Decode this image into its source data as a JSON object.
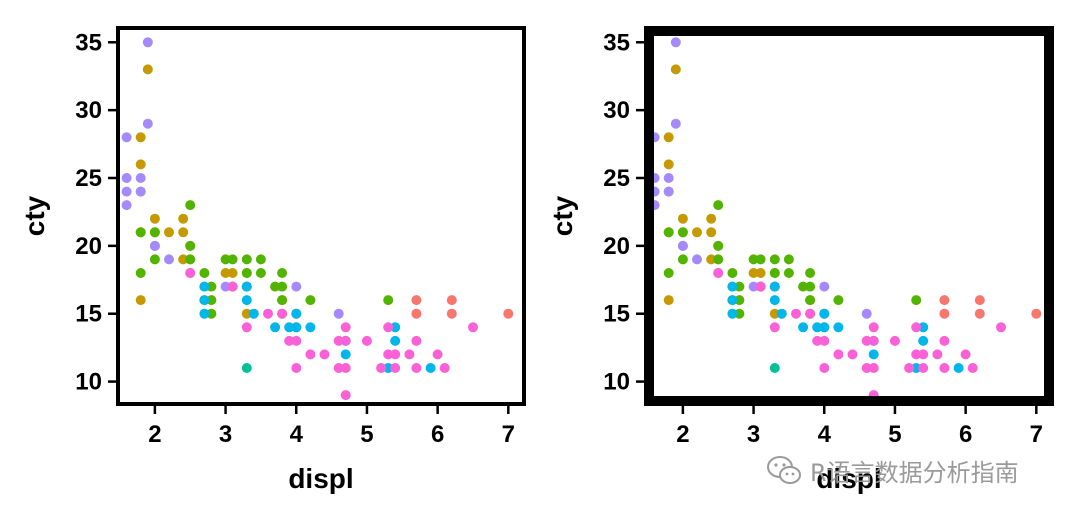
{
  "watermark": {
    "text": "R语言数据分析指南",
    "icon": "wechat-icon"
  },
  "chart_data": [
    {
      "type": "scatter",
      "title": "",
      "xlabel": "displ",
      "ylabel": "cty",
      "xlim": [
        1.45,
        7.25
      ],
      "ylim": [
        8.2,
        36.2
      ],
      "xticks": [
        2,
        3,
        4,
        5,
        6,
        7
      ],
      "yticks": [
        10,
        15,
        20,
        25,
        30,
        35
      ],
      "grid": false,
      "panel_border": "thin",
      "legend": "none",
      "series": [
        {
          "color": "#C49A00",
          "points": [
            [
              1.8,
              16
            ],
            [
              1.8,
              21
            ],
            [
              1.9,
              33
            ],
            [
              1.8,
              28
            ],
            [
              1.8,
              26
            ],
            [
              1.8,
              24
            ],
            [
              2.0,
              22
            ],
            [
              2.0,
              21
            ],
            [
              2.2,
              21
            ],
            [
              2.4,
              22
            ],
            [
              2.4,
              21
            ],
            [
              2.5,
              20
            ],
            [
              2.5,
              19
            ],
            [
              2.4,
              19
            ],
            [
              2.7,
              17
            ],
            [
              2.7,
              16
            ],
            [
              3.0,
              18
            ],
            [
              3.1,
              18
            ],
            [
              3.1,
              17
            ],
            [
              3.3,
              17
            ],
            [
              3.3,
              18
            ],
            [
              3.3,
              15
            ],
            [
              3.8,
              16
            ],
            [
              3.8,
              15
            ]
          ]
        },
        {
          "color": "#53B400",
          "points": [
            [
              1.8,
              18
            ],
            [
              1.8,
              21
            ],
            [
              2.0,
              21
            ],
            [
              2.0,
              20
            ],
            [
              2.0,
              19
            ],
            [
              2.5,
              23
            ],
            [
              2.5,
              20
            ],
            [
              2.5,
              19
            ],
            [
              2.7,
              18
            ],
            [
              2.8,
              17
            ],
            [
              2.8,
              16
            ],
            [
              2.8,
              15
            ],
            [
              3.0,
              19
            ],
            [
              3.1,
              19
            ],
            [
              3.1,
              17
            ],
            [
              3.3,
              19
            ],
            [
              3.3,
              18
            ],
            [
              3.3,
              17
            ],
            [
              3.5,
              19
            ],
            [
              3.5,
              18
            ],
            [
              3.7,
              17
            ],
            [
              3.8,
              18
            ],
            [
              3.8,
              17
            ],
            [
              3.8,
              16
            ],
            [
              4.0,
              15
            ],
            [
              4.0,
              14
            ],
            [
              4.2,
              16
            ],
            [
              5.3,
              16
            ]
          ]
        },
        {
          "color": "#00C094",
          "points": [
            [
              3.3,
              11
            ]
          ]
        },
        {
          "color": "#00B6EB",
          "points": [
            [
              2.7,
              17
            ],
            [
              2.7,
              16
            ],
            [
              2.7,
              15
            ],
            [
              3.3,
              17
            ],
            [
              3.3,
              16
            ],
            [
              3.4,
              15
            ],
            [
              3.7,
              14
            ],
            [
              3.9,
              14
            ],
            [
              4.0,
              15
            ],
            [
              4.0,
              14
            ],
            [
              4.2,
              14
            ],
            [
              4.7,
              13
            ],
            [
              4.7,
              12
            ],
            [
              5.3,
              11
            ],
            [
              5.4,
              13
            ],
            [
              5.4,
              14
            ],
            [
              5.9,
              11
            ]
          ]
        },
        {
          "color": "#A58AFF",
          "points": [
            [
              1.6,
              28
            ],
            [
              1.6,
              25
            ],
            [
              1.6,
              24
            ],
            [
              1.6,
              23
            ],
            [
              1.8,
              25
            ],
            [
              1.8,
              24
            ],
            [
              1.9,
              35
            ],
            [
              1.9,
              29
            ],
            [
              2.0,
              20
            ],
            [
              2.2,
              19
            ],
            [
              2.5,
              18
            ],
            [
              3.0,
              17
            ],
            [
              4.0,
              17
            ],
            [
              4.6,
              15
            ]
          ]
        },
        {
          "color": "#FB61D7",
          "points": [
            [
              2.5,
              18
            ],
            [
              3.1,
              17
            ],
            [
              3.3,
              14
            ],
            [
              3.6,
              15
            ],
            [
              3.8,
              15
            ],
            [
              3.9,
              13
            ],
            [
              4.0,
              13
            ],
            [
              4.0,
              11
            ],
            [
              4.2,
              12
            ],
            [
              4.4,
              12
            ],
            [
              4.6,
              13
            ],
            [
              4.6,
              11
            ],
            [
              4.7,
              14
            ],
            [
              4.7,
              13
            ],
            [
              4.7,
              11
            ],
            [
              4.7,
              9
            ],
            [
              5.0,
              13
            ],
            [
              5.2,
              11
            ],
            [
              5.3,
              12
            ],
            [
              5.3,
              14
            ],
            [
              5.4,
              11
            ],
            [
              5.4,
              12
            ],
            [
              5.6,
              12
            ],
            [
              5.7,
              13
            ],
            [
              5.7,
              11
            ],
            [
              6.0,
              12
            ],
            [
              6.1,
              11
            ],
            [
              6.5,
              14
            ]
          ]
        },
        {
          "color": "#F8766D",
          "points": [
            [
              5.7,
              16
            ],
            [
              5.7,
              15
            ],
            [
              6.2,
              16
            ],
            [
              6.2,
              15
            ],
            [
              7.0,
              15
            ]
          ]
        }
      ]
    },
    {
      "type": "scatter",
      "title": "",
      "xlabel": "displ",
      "ylabel": "cty",
      "xlim": [
        1.45,
        7.25
      ],
      "ylim": [
        8.2,
        36.2
      ],
      "xticks": [
        2,
        3,
        4,
        5,
        6,
        7
      ],
      "yticks": [
        10,
        15,
        20,
        25,
        30,
        35
      ],
      "grid": false,
      "panel_border": "thick",
      "legend": "none",
      "series": [
        {
          "color": "#C49A00",
          "points": [
            [
              1.8,
              16
            ],
            [
              1.8,
              21
            ],
            [
              1.9,
              33
            ],
            [
              1.8,
              28
            ],
            [
              1.8,
              26
            ],
            [
              1.8,
              24
            ],
            [
              2.0,
              22
            ],
            [
              2.0,
              21
            ],
            [
              2.2,
              21
            ],
            [
              2.4,
              22
            ],
            [
              2.4,
              21
            ],
            [
              2.5,
              20
            ],
            [
              2.5,
              19
            ],
            [
              2.4,
              19
            ],
            [
              2.7,
              17
            ],
            [
              2.7,
              16
            ],
            [
              3.0,
              18
            ],
            [
              3.1,
              18
            ],
            [
              3.1,
              17
            ],
            [
              3.3,
              17
            ],
            [
              3.3,
              18
            ],
            [
              3.3,
              15
            ],
            [
              3.8,
              16
            ],
            [
              3.8,
              15
            ]
          ]
        },
        {
          "color": "#53B400",
          "points": [
            [
              1.8,
              18
            ],
            [
              1.8,
              21
            ],
            [
              2.0,
              21
            ],
            [
              2.0,
              20
            ],
            [
              2.0,
              19
            ],
            [
              2.5,
              23
            ],
            [
              2.5,
              20
            ],
            [
              2.5,
              19
            ],
            [
              2.7,
              18
            ],
            [
              2.8,
              17
            ],
            [
              2.8,
              16
            ],
            [
              2.8,
              15
            ],
            [
              3.0,
              19
            ],
            [
              3.1,
              19
            ],
            [
              3.1,
              17
            ],
            [
              3.3,
              19
            ],
            [
              3.3,
              18
            ],
            [
              3.3,
              17
            ],
            [
              3.5,
              19
            ],
            [
              3.5,
              18
            ],
            [
              3.7,
              17
            ],
            [
              3.8,
              18
            ],
            [
              3.8,
              17
            ],
            [
              3.8,
              16
            ],
            [
              4.0,
              15
            ],
            [
              4.0,
              14
            ],
            [
              4.2,
              16
            ],
            [
              5.3,
              16
            ]
          ]
        },
        {
          "color": "#00C094",
          "points": [
            [
              3.3,
              11
            ]
          ]
        },
        {
          "color": "#00B6EB",
          "points": [
            [
              2.7,
              17
            ],
            [
              2.7,
              16
            ],
            [
              2.7,
              15
            ],
            [
              3.3,
              17
            ],
            [
              3.3,
              16
            ],
            [
              3.4,
              15
            ],
            [
              3.7,
              14
            ],
            [
              3.9,
              14
            ],
            [
              4.0,
              15
            ],
            [
              4.0,
              14
            ],
            [
              4.2,
              14
            ],
            [
              4.7,
              13
            ],
            [
              4.7,
              12
            ],
            [
              5.3,
              11
            ],
            [
              5.4,
              13
            ],
            [
              5.4,
              14
            ],
            [
              5.9,
              11
            ]
          ]
        },
        {
          "color": "#A58AFF",
          "points": [
            [
              1.6,
              28
            ],
            [
              1.6,
              25
            ],
            [
              1.6,
              24
            ],
            [
              1.6,
              23
            ],
            [
              1.8,
              25
            ],
            [
              1.8,
              24
            ],
            [
              1.9,
              35
            ],
            [
              1.9,
              29
            ],
            [
              2.0,
              20
            ],
            [
              2.2,
              19
            ],
            [
              2.5,
              18
            ],
            [
              3.0,
              17
            ],
            [
              4.0,
              17
            ],
            [
              4.6,
              15
            ]
          ]
        },
        {
          "color": "#FB61D7",
          "points": [
            [
              2.5,
              18
            ],
            [
              3.1,
              17
            ],
            [
              3.3,
              14
            ],
            [
              3.6,
              15
            ],
            [
              3.8,
              15
            ],
            [
              3.9,
              13
            ],
            [
              4.0,
              13
            ],
            [
              4.0,
              11
            ],
            [
              4.2,
              12
            ],
            [
              4.4,
              12
            ],
            [
              4.6,
              13
            ],
            [
              4.6,
              11
            ],
            [
              4.7,
              14
            ],
            [
              4.7,
              13
            ],
            [
              4.7,
              11
            ],
            [
              4.7,
              9
            ],
            [
              5.0,
              13
            ],
            [
              5.2,
              11
            ],
            [
              5.3,
              12
            ],
            [
              5.3,
              14
            ],
            [
              5.4,
              11
            ],
            [
              5.4,
              12
            ],
            [
              5.6,
              12
            ],
            [
              5.7,
              13
            ],
            [
              5.7,
              11
            ],
            [
              6.0,
              12
            ],
            [
              6.1,
              11
            ],
            [
              6.5,
              14
            ]
          ]
        },
        {
          "color": "#F8766D",
          "points": [
            [
              5.7,
              16
            ],
            [
              5.7,
              15
            ],
            [
              6.2,
              16
            ],
            [
              6.2,
              15
            ],
            [
              7.0,
              15
            ]
          ]
        }
      ]
    }
  ]
}
